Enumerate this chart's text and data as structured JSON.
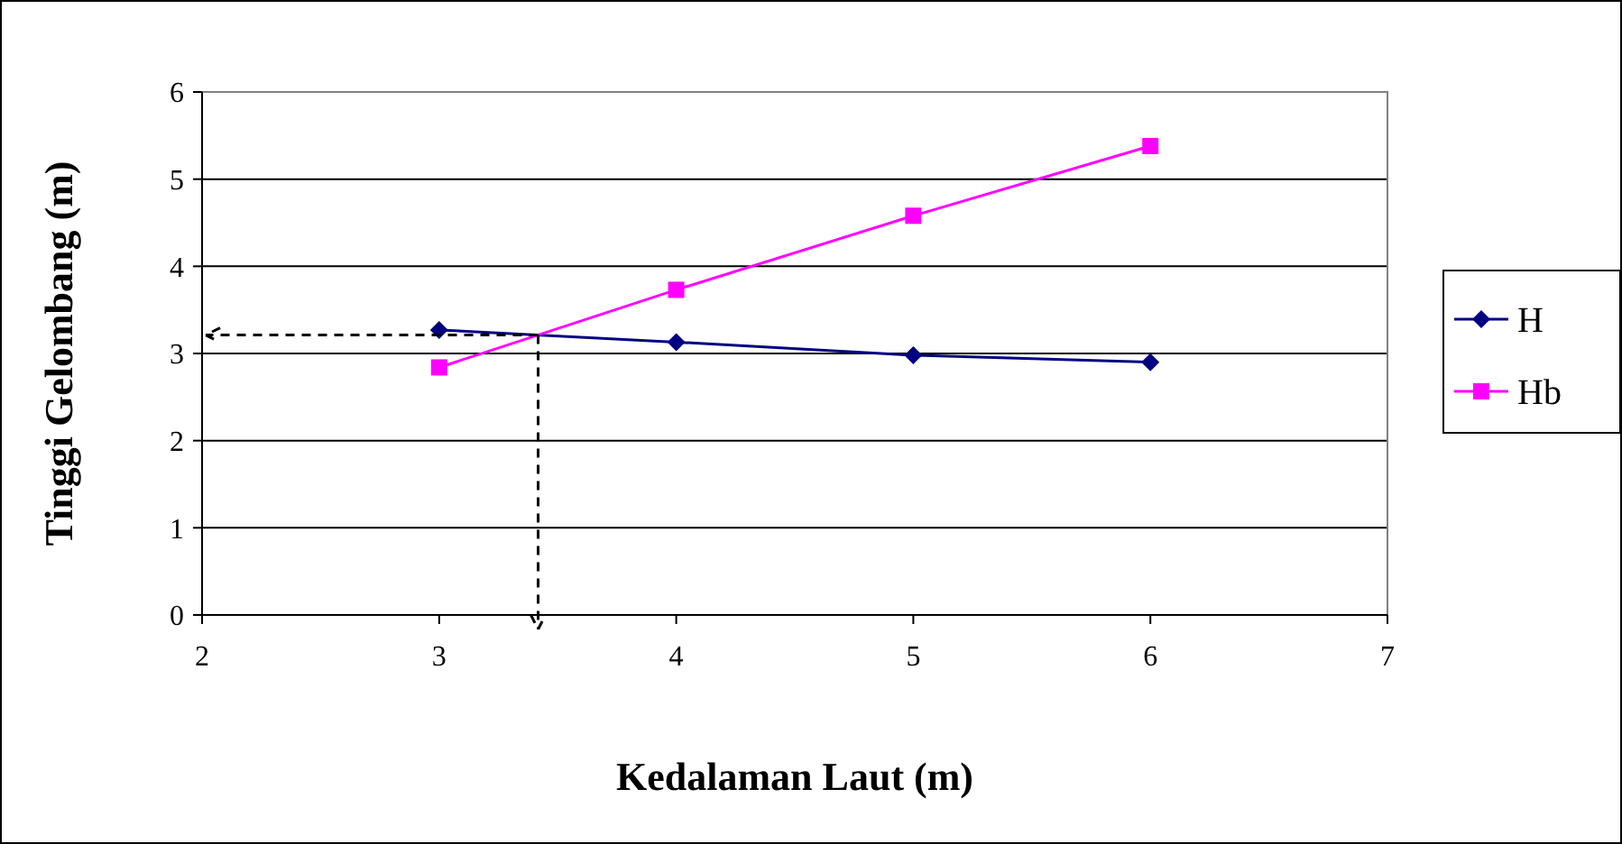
{
  "chart_data": {
    "type": "line",
    "xlabel": "Kedalaman Laut (m)",
    "ylabel": "Tinggi Gelombang (m)",
    "x": [
      3,
      4,
      5,
      6
    ],
    "series": [
      {
        "name": "H",
        "color": "#000080",
        "values": [
          3.27,
          3.13,
          2.98,
          2.9
        ],
        "marker": "diamond"
      },
      {
        "name": "Hb",
        "color": "#ff00ff",
        "values": [
          2.84,
          3.73,
          4.58,
          5.38
        ],
        "marker": "square"
      }
    ],
    "xlim": [
      2,
      7
    ],
    "xticks": [
      2,
      3,
      4,
      5,
      6,
      7
    ],
    "ylim": [
      0,
      6
    ],
    "yticks": [
      0,
      1,
      2,
      3,
      4,
      5,
      6
    ],
    "grid": "y",
    "legend": "right"
  }
}
